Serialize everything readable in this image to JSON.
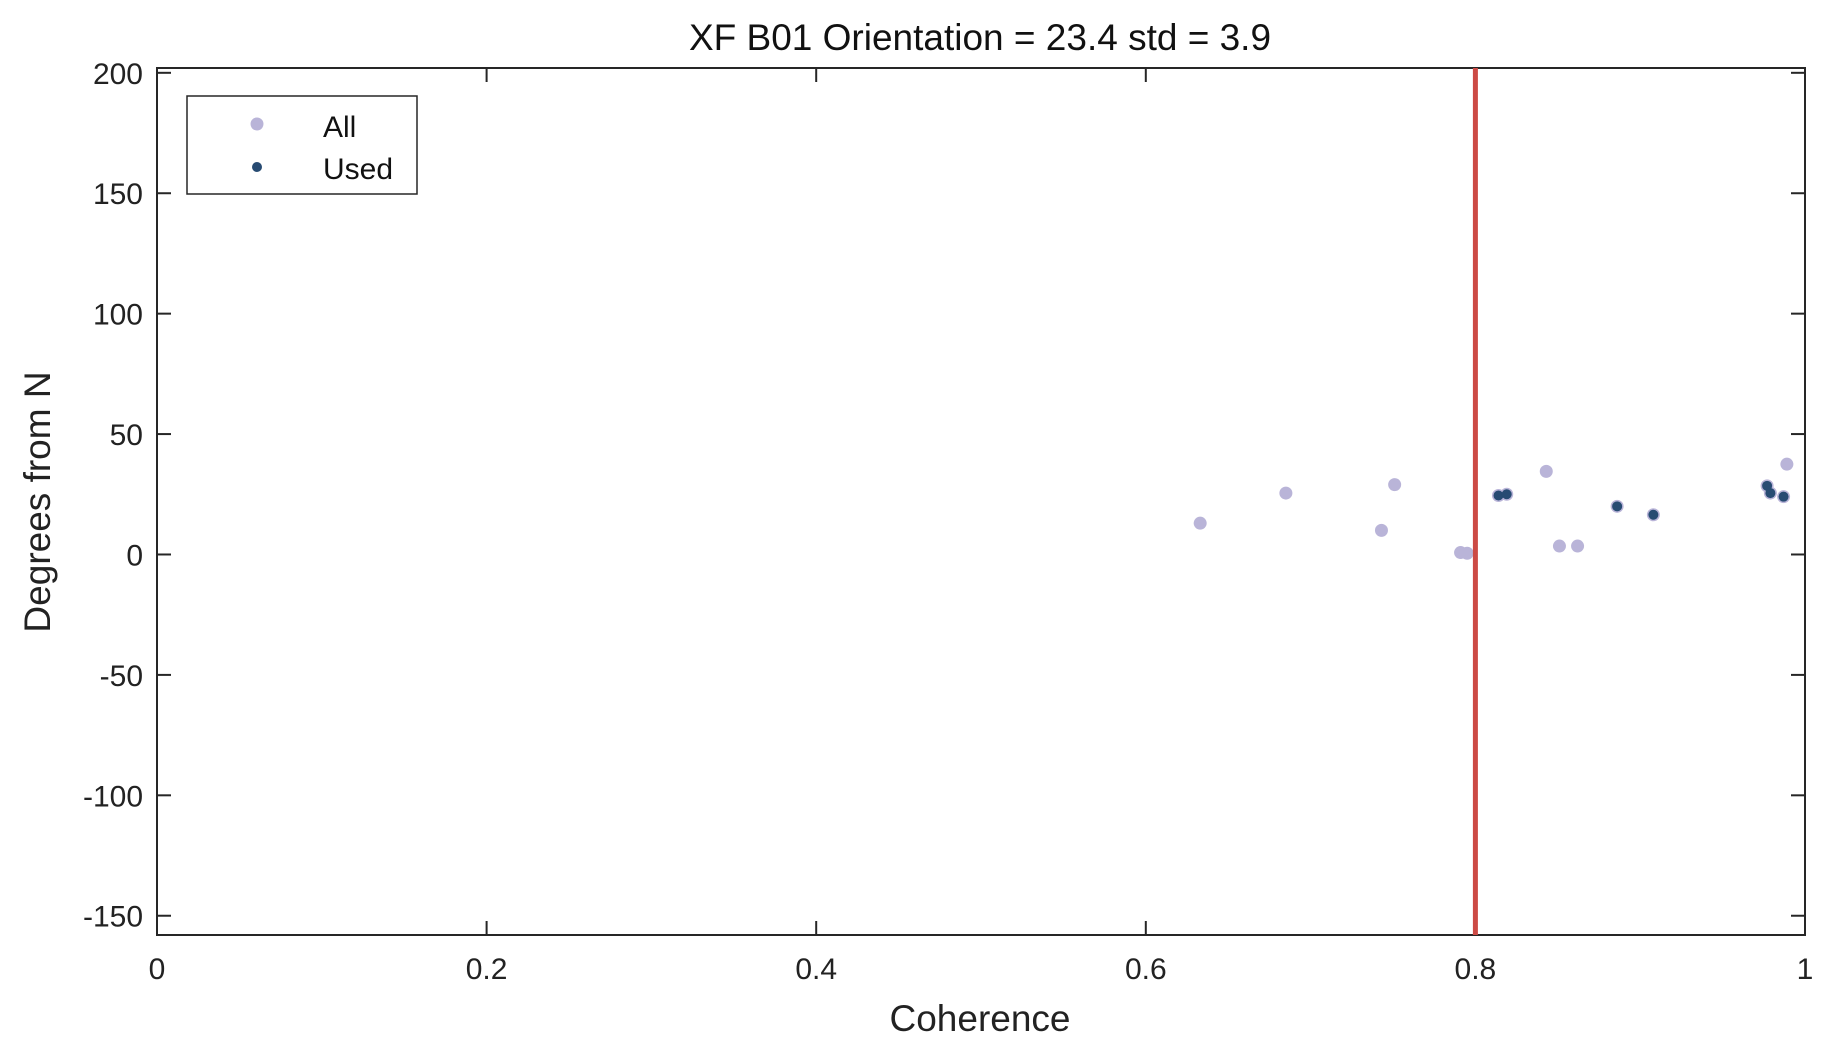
{
  "chart_data": {
    "type": "scatter",
    "title": "XF B01 Orientation = 23.4  std = 3.9",
    "xlabel": "Coherence",
    "ylabel": "Degrees from N",
    "xlim": [
      0,
      1
    ],
    "ylim": [
      -158,
      202
    ],
    "xticks": [
      0,
      0.2,
      0.4,
      0.6,
      0.8,
      1
    ],
    "xtick_labels": [
      "0",
      "0.2",
      "0.4",
      "0.6",
      "0.8",
      "1"
    ],
    "yticks": [
      -150,
      -100,
      -50,
      0,
      50,
      100,
      150,
      200
    ],
    "ytick_labels": [
      "-150",
      "-100",
      "-50",
      "0",
      "50",
      "100",
      "150",
      "200"
    ],
    "grid": false,
    "legend_position": "top-left",
    "threshold_line": {
      "x": 0.8,
      "color": "#cc4a45"
    },
    "series": [
      {
        "name": "All",
        "color": "#b9b4d8",
        "points": [
          [
            0.633,
            13
          ],
          [
            0.685,
            25.5
          ],
          [
            0.743,
            10
          ],
          [
            0.751,
            29
          ],
          [
            0.791,
            0.8
          ],
          [
            0.795,
            0.5
          ],
          [
            0.814,
            24.5
          ],
          [
            0.819,
            25
          ],
          [
            0.843,
            34.5
          ],
          [
            0.851,
            3.5
          ],
          [
            0.862,
            3.5
          ],
          [
            0.886,
            20
          ],
          [
            0.908,
            16.5
          ],
          [
            0.977,
            28.5
          ],
          [
            0.979,
            25.5
          ],
          [
            0.987,
            24
          ],
          [
            0.989,
            37.5
          ]
        ]
      },
      {
        "name": "Used",
        "color": "#274b72",
        "points": [
          [
            0.814,
            24.5
          ],
          [
            0.819,
            25
          ],
          [
            0.886,
            20
          ],
          [
            0.908,
            16.5
          ],
          [
            0.977,
            28.5
          ],
          [
            0.979,
            25.5
          ],
          [
            0.987,
            24
          ]
        ]
      }
    ]
  }
}
